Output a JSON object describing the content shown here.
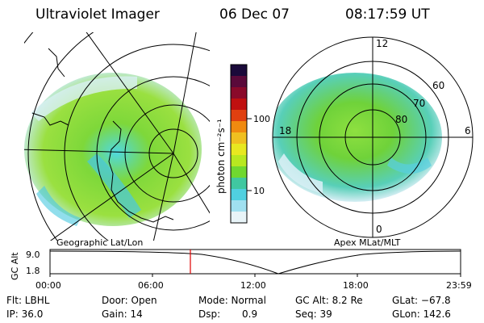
{
  "header": {
    "instrument": "Ultraviolet Imager",
    "date": "06 Dec 07",
    "time": "08:17:59 UT"
  },
  "colorbar": {
    "label": "photon cm⁻²s⁻¹",
    "ticks": [
      "100",
      "10"
    ],
    "colors": [
      "#1a0a3a",
      "#5a0a3a",
      "#8a0a2a",
      "#c01010",
      "#e04010",
      "#f08a10",
      "#f0c020",
      "#e8e820",
      "#b8e820",
      "#70d830",
      "#40c8a0",
      "#50d0e0",
      "#a0e0f0",
      "#e8f4f8"
    ]
  },
  "geo_panel": {
    "label": "Geographic Lat/Lon"
  },
  "mag_panel": {
    "label": "Apex MLat/MLT",
    "mlt_labels": [
      "12",
      "18",
      "6",
      "0"
    ],
    "mlat_labels": [
      "60",
      "70",
      "80"
    ]
  },
  "altitude_plot": {
    "ylabel": "GC Alt",
    "yticks": [
      "9.0",
      "1.8"
    ],
    "xticks": [
      "00:00",
      "06:00",
      "12:00",
      "18:00",
      "23:59"
    ],
    "marker_color": "#e00000"
  },
  "footer": {
    "row1": [
      "Flt: LBHL",
      "Door: Open",
      "Mode: Normal",
      "GC Alt: 8.2 Re",
      "GLat: −67.8"
    ],
    "row2": [
      "IP: 36.0",
      "Gain: 14",
      "Dsp:",
      "0.9",
      "Seq: 39",
      "GLon: 142.6"
    ]
  }
}
